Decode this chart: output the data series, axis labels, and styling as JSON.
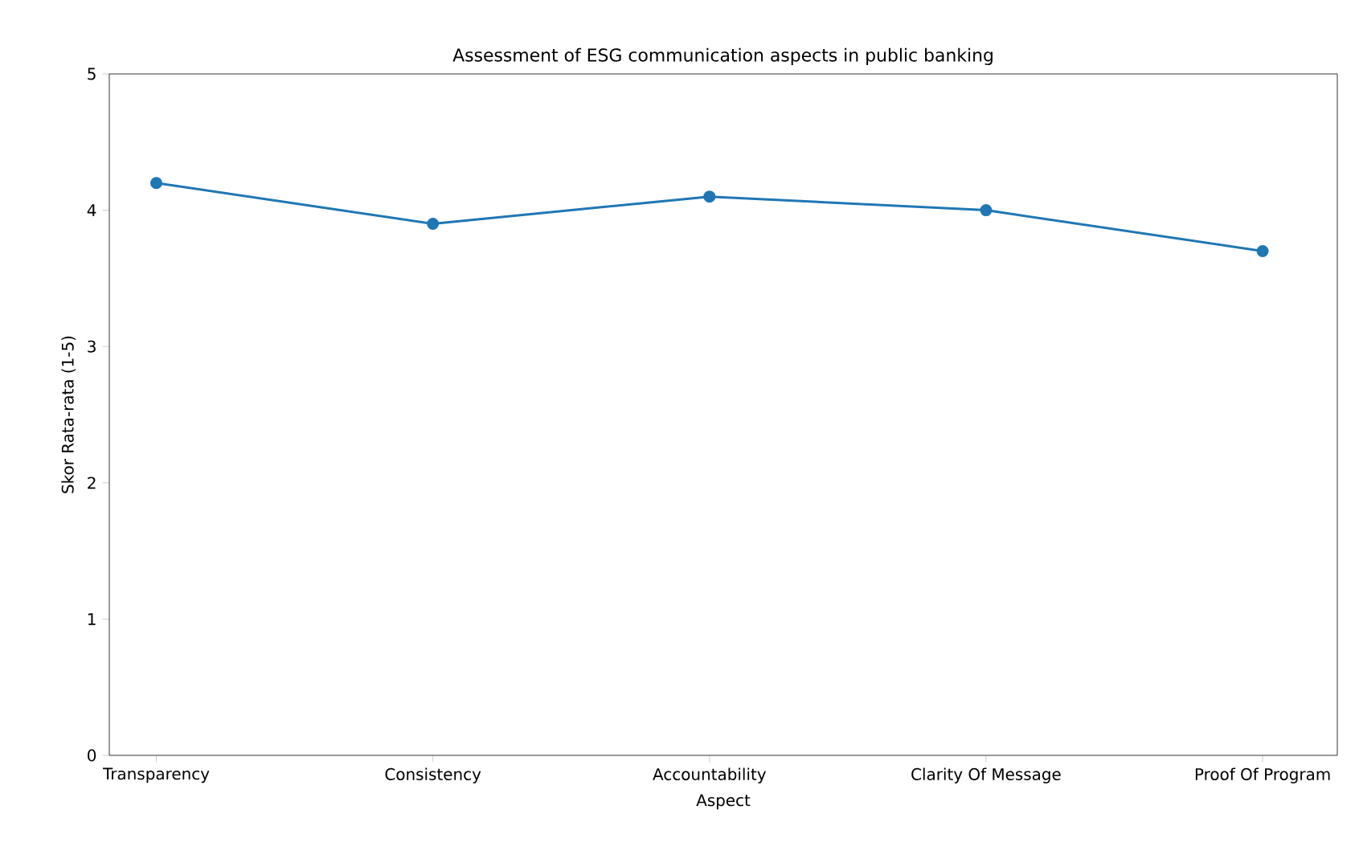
{
  "chart_data": {
    "type": "line",
    "title": "Assessment of ESG communication aspects in public banking",
    "xlabel": "Aspect",
    "ylabel": "Skor Rata-rata (1-5)",
    "categories": [
      "Transparency",
      "Consistency",
      "Accountability",
      "Clarity Of Message",
      "Proof Of Program"
    ],
    "series": [
      {
        "color": "#1f77b4",
        "values": [
          4.2,
          3.9,
          4.1,
          4.0,
          3.7
        ]
      }
    ],
    "ylim": [
      0,
      5
    ],
    "yticks": [
      0,
      1,
      2,
      3,
      4,
      5
    ],
    "marker": "circle",
    "line_style": "solid",
    "grid": false
  }
}
